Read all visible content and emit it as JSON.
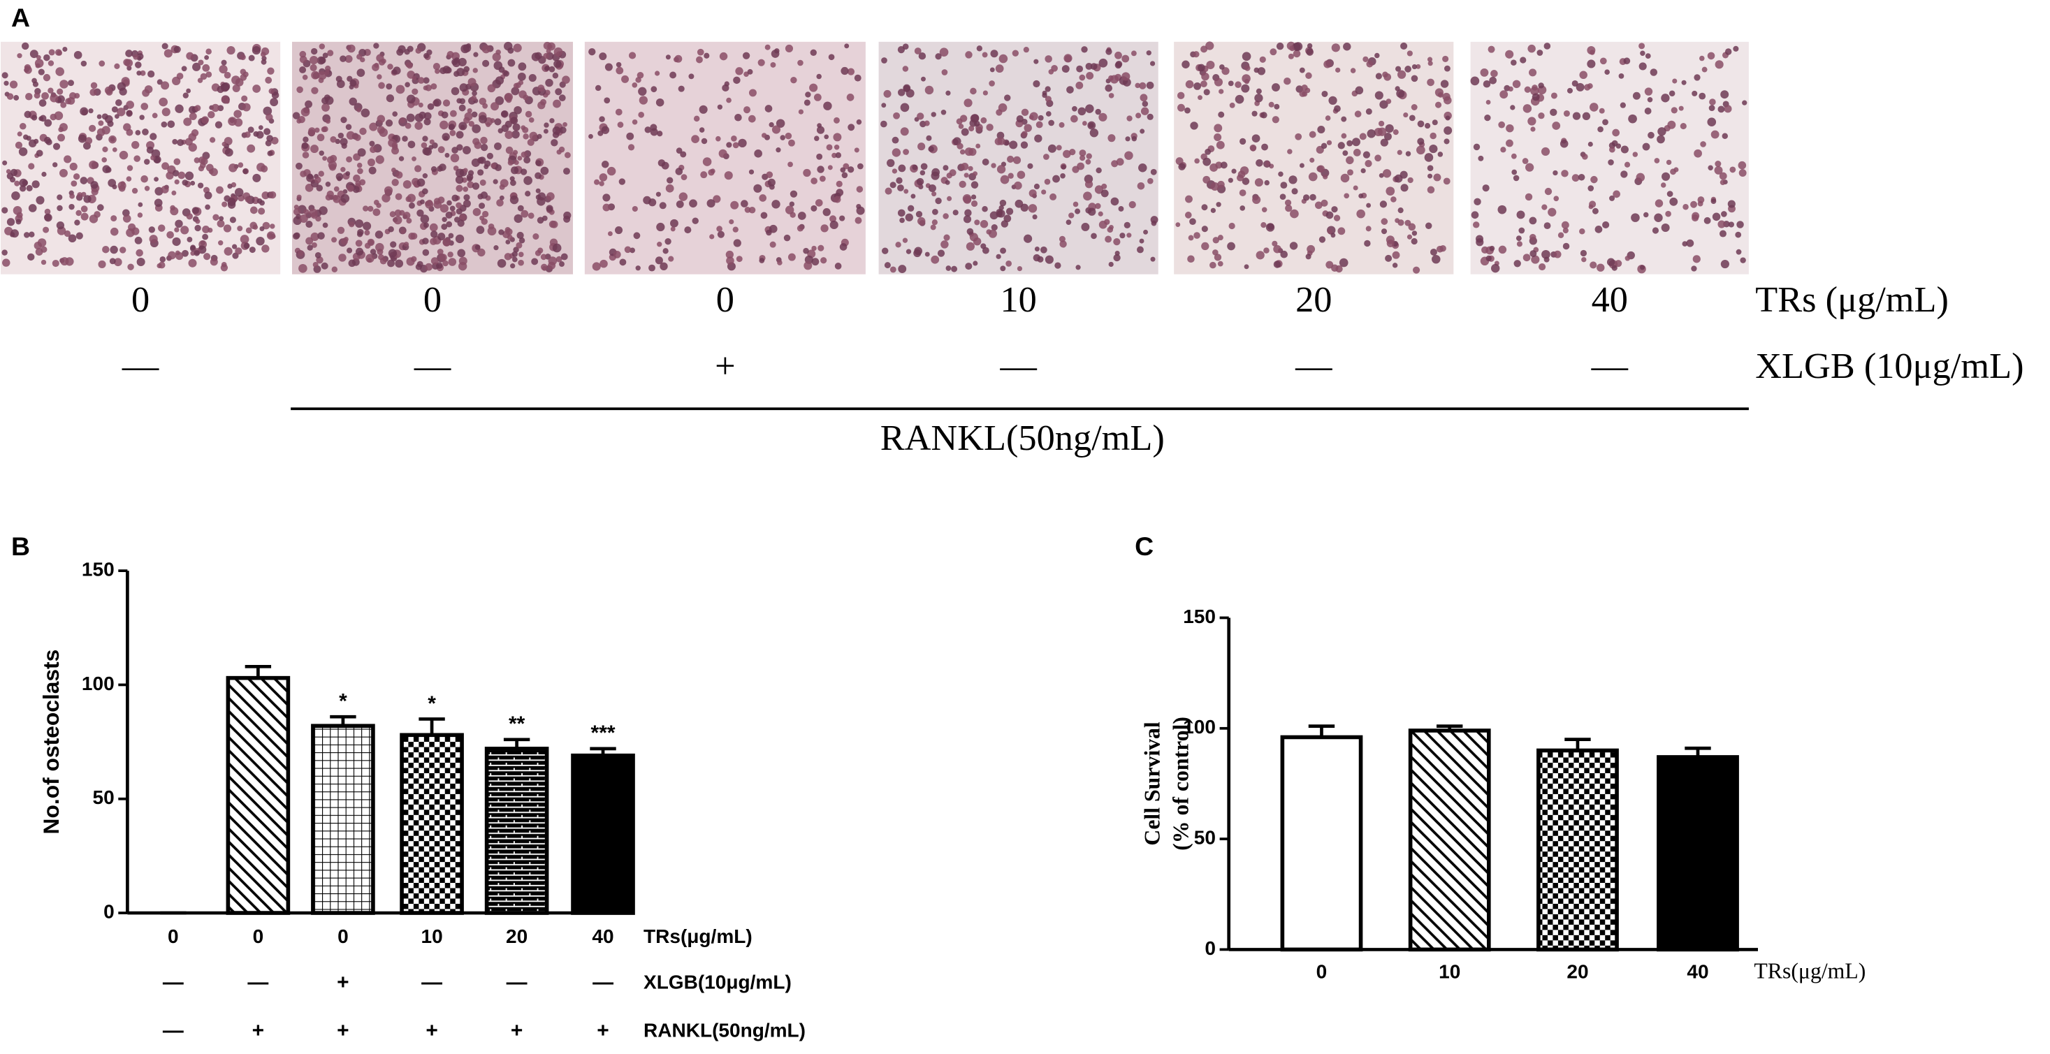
{
  "panel_a": {
    "label": "A",
    "trs_values": [
      "0",
      "0",
      "0",
      "10",
      "20",
      "40"
    ],
    "trs_label": "TRs (μg/mL)",
    "xlgb_marks": [
      "—",
      "—",
      "+",
      "—",
      "—",
      "—"
    ],
    "xlgb_label": "XLGB (10μg/mL)",
    "rankl_label": "RANKL(50ng/mL)"
  },
  "chart_data": [
    {
      "type": "bar",
      "panel_label": "B",
      "ylabel": "No.of osteoclasts",
      "categories": [
        "0",
        "0",
        "0",
        "10",
        "20",
        "40"
      ],
      "values": [
        0,
        103,
        82,
        78,
        72,
        69
      ],
      "errors": [
        0,
        5,
        4,
        7,
        4,
        3
      ],
      "annotations": [
        null,
        null,
        "*",
        "*",
        "**",
        "***"
      ],
      "patterns": [
        "none",
        "diagonal",
        "grid",
        "checker",
        "brick",
        "solid"
      ],
      "ylim": [
        0,
        150
      ],
      "yticks": [
        0,
        50,
        100,
        150
      ],
      "row_labels": [
        "TRs(μg/mL)",
        "XLGB(10μg/mL)",
        "RANKL(50ng/mL)"
      ],
      "xlgb": [
        "—",
        "—",
        "+",
        "—",
        "—",
        "—"
      ],
      "rankl": [
        "—",
        "+",
        "+",
        "+",
        "+",
        "+"
      ]
    },
    {
      "type": "bar",
      "panel_label": "C",
      "ylabel": [
        "Cell Survival",
        "(% of control)"
      ],
      "xlabel": "TRs(μg/mL)",
      "categories": [
        "0",
        "10",
        "20",
        "40"
      ],
      "values": [
        96,
        99,
        90,
        87
      ],
      "errors": [
        5,
        2,
        5,
        4
      ],
      "patterns": [
        "none",
        "diagonal",
        "checker",
        "solid"
      ],
      "ylim": [
        0,
        150
      ],
      "yticks": [
        0,
        50,
        100,
        150
      ]
    }
  ]
}
